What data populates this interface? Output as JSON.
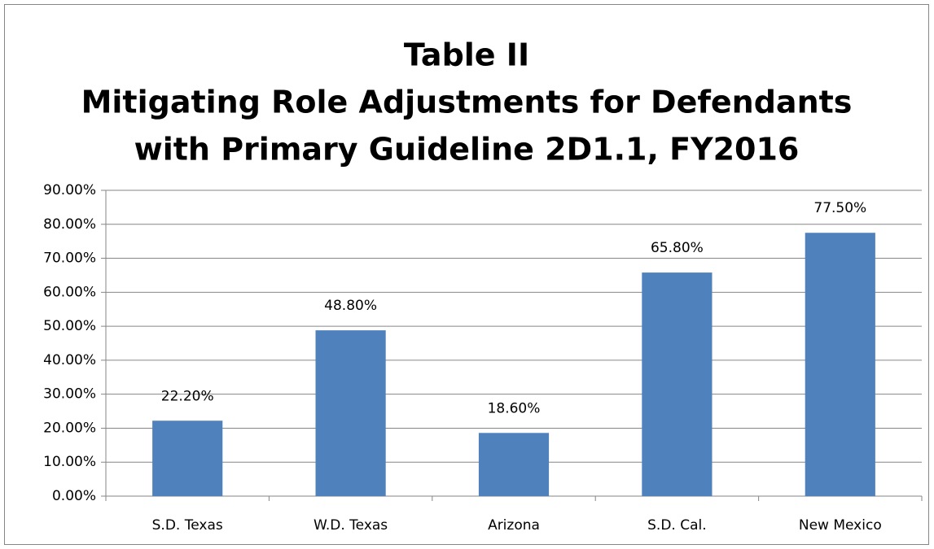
{
  "chart_data": {
    "type": "bar",
    "title": [
      "Table II",
      "Mitigating Role Adjustments for Defendants",
      "with Primary Guideline 2D1.1, FY2016"
    ],
    "categories": [
      "S.D. Texas",
      "W.D. Texas",
      "Arizona",
      "S.D. Cal.",
      "New Mexico"
    ],
    "values": [
      22.2,
      48.8,
      18.6,
      65.8,
      77.5
    ],
    "value_labels": [
      "22.20%",
      "48.80%",
      "18.60%",
      "65.80%",
      "77.50%"
    ],
    "color": "#4f81bd",
    "ylim": [
      0,
      90
    ],
    "yticks": [
      {
        "value": 0,
        "label": "0.00%"
      },
      {
        "value": 10,
        "label": "10.00%"
      },
      {
        "value": 20,
        "label": "20.00%"
      },
      {
        "value": 30,
        "label": "30.00%"
      },
      {
        "value": 40,
        "label": "40.00%"
      },
      {
        "value": 50,
        "label": "50.00%"
      },
      {
        "value": 60,
        "label": "60.00%"
      },
      {
        "value": 70,
        "label": "70.00%"
      },
      {
        "value": 80,
        "label": "80.00%"
      },
      {
        "value": 90,
        "label": "90.00%"
      }
    ],
    "grid": true
  }
}
